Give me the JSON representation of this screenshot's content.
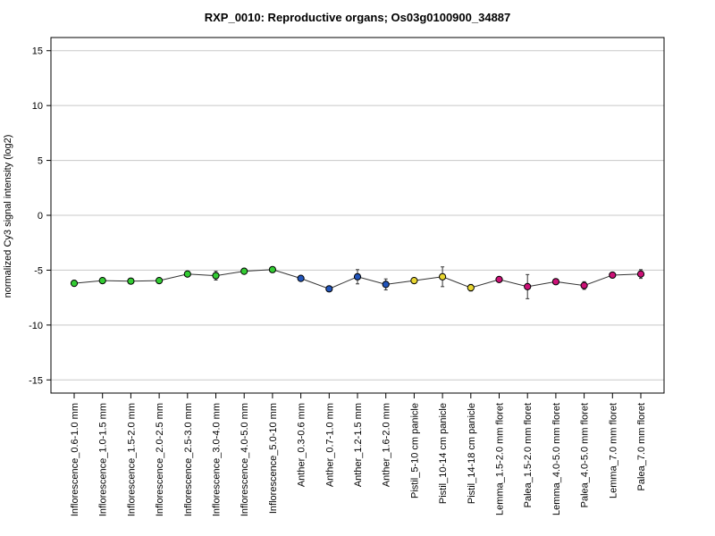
{
  "chart_data": {
    "type": "line",
    "title": "RXP_0010: Reproductive organs; Os03g0100900_34887",
    "ylabel": "normalized Cy3 signal intensity (log2)",
    "xlabel": "",
    "ylim": [
      -16.2,
      16.2
    ],
    "yticks": [
      15,
      10,
      5,
      0,
      -5,
      -10,
      -15
    ],
    "grid": true,
    "categories": [
      "Inflorescence_0.6-1.0 mm",
      "Inflorescence_1.0-1.5 mm",
      "Inflorescence_1.5-2.0 mm",
      "Inflorescence_2.0-2.5 mm",
      "Inflorescence_2.5-3.0 mm",
      "Inflorescence_3.0-4.0 mm",
      "Inflorescence_4.0-5.0 mm",
      "Inflorescence_5.0-10 mm",
      "Anther_0.3-0.6 mm",
      "Anther_0.7-1.0 mm",
      "Anther_1.2-1.5 mm",
      "Anther_1.6-2.0 mm",
      "Pistil_5-10 cm panicle",
      "Pistil_10-14 cm panicle",
      "Pistil_14-18 cm panicle",
      "Lemma_1.5-2.0 mm floret",
      "Palea_1.5-2.0 mm floret",
      "Lemma_4.0-5.0 mm floret",
      "Palea_4.0-5.0 mm floret",
      "Lemma_7.0 mm floret",
      "Palea_7.0 mm floret"
    ],
    "values": [
      -6.2,
      -5.95,
      -6.0,
      -5.95,
      -5.35,
      -5.5,
      -5.1,
      -4.95,
      -5.75,
      -6.7,
      -5.6,
      -6.3,
      -5.95,
      -5.6,
      -6.6,
      -5.85,
      -6.5,
      -6.05,
      -6.4,
      -5.45,
      -5.35
    ],
    "error": [
      0.25,
      0.15,
      0.12,
      0.12,
      0.15,
      0.4,
      0.15,
      0.12,
      0.12,
      0.15,
      0.65,
      0.5,
      0.2,
      0.9,
      0.3,
      0.15,
      1.1,
      0.15,
      0.35,
      0.12,
      0.4
    ],
    "point_colors": [
      "#33cc33",
      "#33cc33",
      "#33cc33",
      "#33cc33",
      "#33cc33",
      "#33cc33",
      "#33cc33",
      "#33cc33",
      "#2255bb",
      "#2255bb",
      "#2255bb",
      "#2255bb",
      "#e8d630",
      "#e8d630",
      "#e8d630",
      "#cc1177",
      "#cc1177",
      "#cc1177",
      "#cc1177",
      "#cc1177",
      "#cc1177"
    ]
  }
}
